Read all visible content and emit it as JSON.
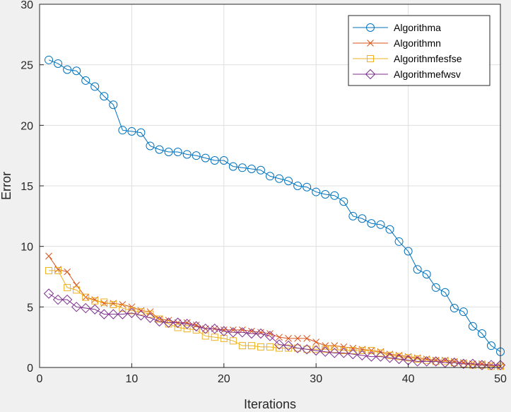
{
  "chart_data": {
    "type": "line",
    "title": "",
    "xlabel": "Iterations",
    "ylabel": "Error",
    "xlim": [
      0,
      50
    ],
    "ylim": [
      0,
      30
    ],
    "xticks": [
      0,
      10,
      20,
      30,
      40,
      50
    ],
    "yticks": [
      0,
      5,
      10,
      15,
      20,
      25,
      30
    ],
    "grid": true,
    "legend_position": "top-right",
    "x": [
      1,
      2,
      3,
      4,
      5,
      6,
      7,
      8,
      9,
      10,
      11,
      12,
      13,
      14,
      15,
      16,
      17,
      18,
      19,
      20,
      21,
      22,
      23,
      24,
      25,
      26,
      27,
      28,
      29,
      30,
      31,
      32,
      33,
      34,
      35,
      36,
      37,
      38,
      39,
      40,
      41,
      42,
      43,
      44,
      45,
      46,
      47,
      48,
      49,
      50
    ],
    "series": [
      {
        "name": "Algorithma",
        "color": "#0072bd",
        "marker": "circle",
        "values": [
          25.4,
          25.1,
          24.6,
          24.5,
          23.7,
          23.2,
          22.4,
          21.7,
          19.6,
          19.5,
          19.4,
          18.3,
          18.0,
          17.8,
          17.8,
          17.6,
          17.5,
          17.3,
          17.1,
          17.1,
          16.6,
          16.5,
          16.4,
          16.3,
          15.8,
          15.6,
          15.4,
          15.0,
          14.9,
          14.5,
          14.3,
          14.2,
          13.7,
          12.5,
          12.3,
          11.9,
          11.8,
          11.4,
          10.4,
          9.6,
          8.1,
          7.7,
          6.6,
          6.2,
          4.9,
          4.6,
          3.4,
          2.8,
          1.8,
          1.3
        ]
      },
      {
        "name": "Algorithmn",
        "color": "#d95319",
        "marker": "x",
        "values": [
          9.2,
          8.1,
          7.9,
          6.8,
          5.8,
          5.6,
          5.3,
          5.3,
          5.2,
          5.0,
          4.7,
          4.6,
          4.0,
          3.9,
          3.7,
          3.7,
          3.5,
          3.2,
          3.2,
          3.1,
          3.1,
          3.1,
          3.0,
          2.9,
          2.8,
          2.5,
          2.4,
          2.4,
          2.4,
          2.1,
          1.8,
          1.8,
          1.7,
          1.6,
          1.5,
          1.4,
          1.3,
          1.1,
          1.0,
          0.9,
          0.8,
          0.7,
          0.6,
          0.6,
          0.5,
          0.4,
          0.3,
          0.3,
          0.2,
          0.1
        ]
      },
      {
        "name": "Algorithmfesfse",
        "color": "#edb120",
        "marker": "square",
        "values": [
          8.0,
          8.0,
          6.6,
          6.4,
          5.8,
          5.5,
          5.4,
          5.2,
          4.9,
          4.7,
          4.6,
          4.4,
          4.0,
          3.6,
          3.3,
          3.2,
          3.1,
          2.6,
          2.5,
          2.4,
          2.2,
          1.8,
          1.8,
          1.7,
          1.7,
          1.6,
          1.6,
          1.6,
          1.5,
          1.5,
          1.5,
          1.5,
          1.4,
          1.4,
          1.4,
          1.4,
          1.2,
          1.0,
          0.9,
          0.8,
          0.7,
          0.6,
          0.5,
          0.5,
          0.4,
          0.3,
          0.2,
          0.2,
          0.1,
          0.1
        ]
      },
      {
        "name": "Algorithmefwsv",
        "color": "#7e2f8e",
        "marker": "diamond",
        "values": [
          6.1,
          5.6,
          5.6,
          5.0,
          4.9,
          4.8,
          4.4,
          4.4,
          4.4,
          4.5,
          4.3,
          4.1,
          3.8,
          3.7,
          3.7,
          3.6,
          3.4,
          3.2,
          3.2,
          3.0,
          2.9,
          2.9,
          2.8,
          2.8,
          2.6,
          1.9,
          1.8,
          1.6,
          1.5,
          1.4,
          1.3,
          1.2,
          1.2,
          1.1,
          1.0,
          0.9,
          0.9,
          0.8,
          0.7,
          0.6,
          0.5,
          0.5,
          0.5,
          0.4,
          0.4,
          0.3,
          0.3,
          0.2,
          0.2,
          0.2
        ]
      }
    ]
  }
}
